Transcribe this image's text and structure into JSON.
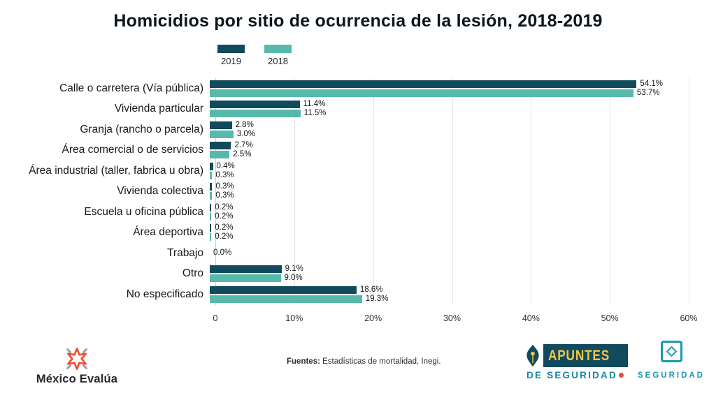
{
  "title": "Homicidios por sitio de ocurrencia de la lesión, 2018-2019",
  "colors": {
    "series_2019": "#114a5c",
    "series_2018": "#57b9ab",
    "gridline": "#e4e4e4",
    "zero_line": "#c9cdd0",
    "title_text": "#0b161c",
    "apuntes_dark": "#114a5c",
    "apuntes_yellow": "#f3c545",
    "apuntes_teal": "#1587a3",
    "apuntes_red": "#e84c3d",
    "badge_teal": "#1d96b5",
    "star_orange": "#f04e37",
    "star_gray": "#9b9b9b"
  },
  "legend": [
    {
      "label": "2019",
      "color": "#114a5c"
    },
    {
      "label": "2018",
      "color": "#57b9ab"
    }
  ],
  "chart_data": {
    "type": "bar",
    "orientation": "horizontal",
    "title": "Homicidios por sitio de ocurrencia de la lesión, 2018-2019",
    "categories": [
      "Calle o carretera (Vía pública)",
      "Vivienda particular",
      "Granja (rancho o parcela)",
      "Área comercial o de servicios",
      "Área industrial (taller, fabrica u obra)",
      "Vivienda colectiva",
      "Escuela u oficina pública",
      "Área deportiva",
      "Trabajo",
      "Otro",
      "No especificado"
    ],
    "series": [
      {
        "name": "2019",
        "color": "#114a5c",
        "values": [
          54.1,
          11.4,
          2.8,
          2.7,
          0.4,
          0.3,
          0.2,
          0.2,
          0.0,
          9.1,
          18.6
        ]
      },
      {
        "name": "2018",
        "color": "#57b9ab",
        "values": [
          53.7,
          11.5,
          3.0,
          2.5,
          0.3,
          0.3,
          0.2,
          0.2,
          null,
          9.0,
          19.3
        ]
      }
    ],
    "value_labels": [
      [
        "54.1%",
        "53.7%"
      ],
      [
        "11.4%",
        "11.5%"
      ],
      [
        "2.8%",
        "3.0%"
      ],
      [
        "2.7%",
        "2.5%"
      ],
      [
        "0.4%",
        "0.3%"
      ],
      [
        "0.3%",
        "0.3%"
      ],
      [
        "0.2%",
        "0.2%"
      ],
      [
        "0.2%",
        "0.2%"
      ],
      [
        "0.0%"
      ],
      [
        "9.1%",
        "9.0%"
      ],
      [
        "18.6%",
        "19.3%"
      ]
    ],
    "xlim": [
      0,
      60
    ],
    "x_ticks": [
      "0",
      "10%",
      "20%",
      "30%",
      "40%",
      "50%",
      "60%"
    ],
    "grid": true,
    "legend_position": "top-left"
  },
  "footer": {
    "source_label": "Fuentes:",
    "source_text": " Estadísticas de mortalidad, Inegi.",
    "mexico_evalua": "México Evalúa",
    "apuntes_line1": "APUNTES",
    "apuntes_line2": "DE SEGURIDAD",
    "seguridad_badge": "SEGURIDAD"
  }
}
